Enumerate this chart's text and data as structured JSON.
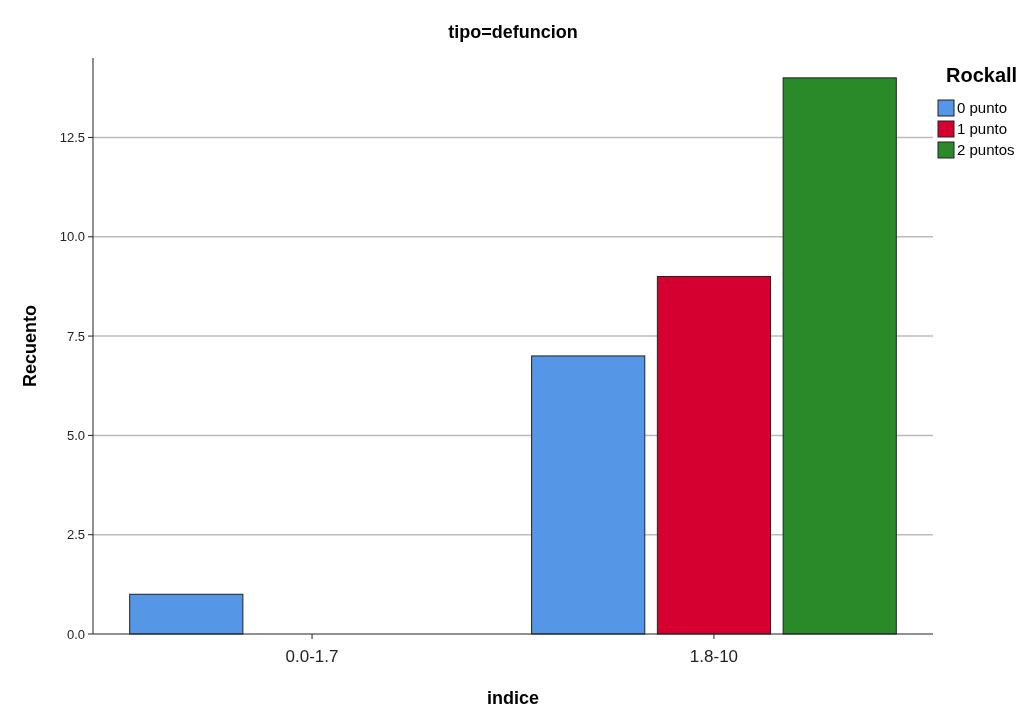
{
  "chart_data": {
    "type": "bar",
    "title": "tipo=defuncion",
    "xlabel": "indice",
    "ylabel": "Recuento",
    "legend_title": "Rockall",
    "categories": [
      "0.0-1.7",
      "1.8-10"
    ],
    "series": [
      {
        "name": "0 punto",
        "color": "#5596e6",
        "values": [
          1,
          7
        ]
      },
      {
        "name": "1 punto",
        "color": "#d5002f",
        "values": [
          null,
          9
        ]
      },
      {
        "name": "2 puntos",
        "color": "#2a8a2a",
        "values": [
          null,
          14
        ]
      }
    ],
    "ylim": [
      0,
      14.5
    ],
    "yticks": [
      {
        "value": 0,
        "label": "0.0"
      },
      {
        "value": 2.5,
        "label": "2.5"
      },
      {
        "value": 5,
        "label": "5.0"
      },
      {
        "value": 7.5,
        "label": "7.5"
      },
      {
        "value": 10,
        "label": "10.0"
      },
      {
        "value": 12.5,
        "label": "12.5"
      }
    ],
    "grid": "y",
    "legend": "top right"
  }
}
